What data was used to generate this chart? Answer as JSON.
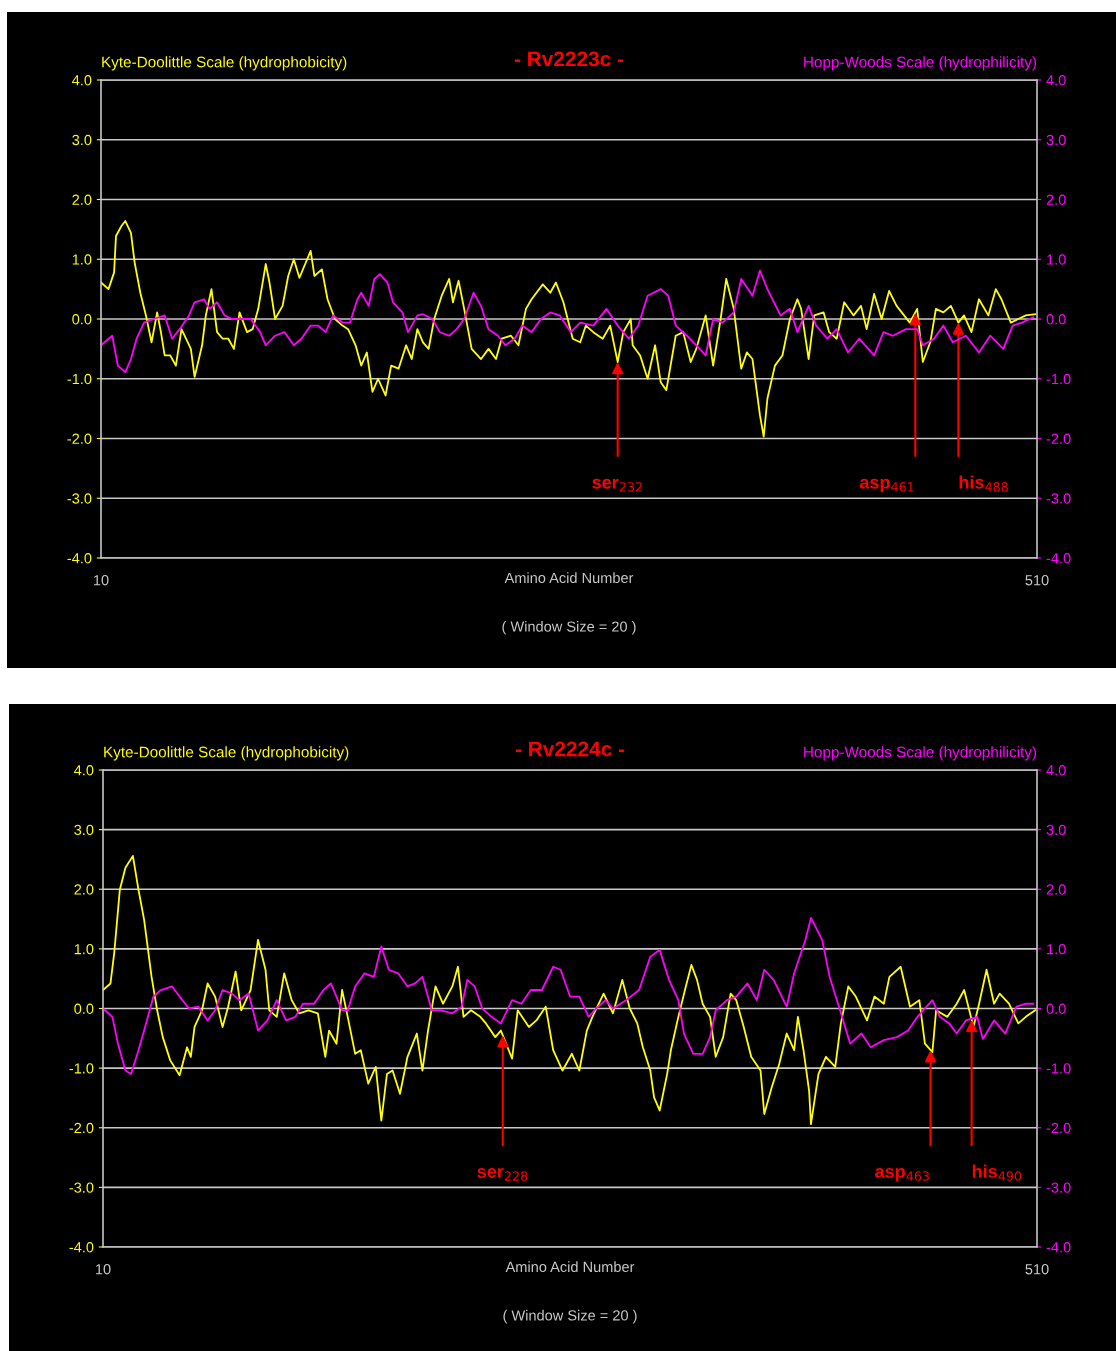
{
  "chart_data": [
    {
      "type": "line",
      "title": "- Rv2223c -",
      "xlabel": "Amino Acid Number",
      "xlim": [
        10,
        510
      ],
      "xticks": [
        10,
        510
      ],
      "ylim": [
        -4,
        4
      ],
      "yticks": [
        {
          "value": -4,
          "label": "-4.0"
        },
        {
          "value": -3,
          "label": "-3.0"
        },
        {
          "value": -2,
          "label": "-2.0"
        },
        {
          "value": -1,
          "label": "-1.0"
        },
        {
          "value": 0,
          "label": "0.0"
        },
        {
          "value": 1,
          "label": "1.0"
        },
        {
          "value": 2,
          "label": "2.0"
        },
        {
          "value": 3,
          "label": "3.0"
        },
        {
          "value": 4,
          "label": "4.0"
        }
      ],
      "y2lim": [
        -4,
        4
      ],
      "y2ticks": [
        {
          "value": -4,
          "label": "-4.0"
        },
        {
          "value": -3,
          "label": "-3.0"
        },
        {
          "value": -2,
          "label": "-2.0"
        },
        {
          "value": -1,
          "label": "-1.0"
        },
        {
          "value": 0,
          "label": "0.0"
        },
        {
          "value": 1,
          "label": "1.0"
        },
        {
          "value": 2,
          "label": "2.0"
        },
        {
          "value": 3,
          "label": "3.0"
        },
        {
          "value": 4,
          "label": "4.0"
        }
      ],
      "grid": "y",
      "annotations": [
        {
          "text": "ser$_{232}$",
          "x": 286,
          "y": -0.72
        },
        {
          "text": "asp$_{461}$",
          "x": 445,
          "y": 0.1
        },
        {
          "text": "his$_{488}$",
          "x": 468,
          "y": -0.06
        },
        "( Window Size = 20 )"
      ],
      "series": [
        {
          "name": "Kyte-Doolittle Scale (hydrophobicity)",
          "color": "#ffff00",
          "x": [
            10,
            14,
            17,
            18,
            21,
            23,
            26,
            28,
            31,
            34,
            37,
            40,
            42,
            44,
            47,
            50,
            53,
            58,
            60,
            64,
            66,
            69,
            72,
            75,
            78,
            81,
            84,
            88,
            91,
            94,
            98,
            100,
            103,
            107,
            110,
            113,
            116,
            122,
            124,
            128,
            131,
            135,
            139,
            142,
            146,
            149,
            152,
            155,
            158,
            162,
            165,
            169,
            173,
            176,
            179,
            182,
            185,
            188,
            192,
            196,
            198,
            201,
            204,
            208,
            213,
            217,
            221,
            224,
            229,
            233,
            237,
            240,
            246,
            250,
            253,
            257,
            262,
            266,
            269,
            273,
            278,
            282,
            286,
            289,
            293,
            294,
            298,
            302,
            306,
            309,
            312,
            317,
            321,
            325,
            328,
            333,
            337,
            341,
            344,
            348,
            352,
            355,
            358,
            362,
            364,
            366,
            370,
            374,
            378,
            382,
            384,
            388,
            391,
            396,
            399,
            403,
            407,
            412,
            416,
            419,
            423,
            427,
            431,
            435,
            439,
            442,
            446,
            449,
            453,
            456,
            460,
            464,
            468,
            471,
            475,
            479,
            484,
            488,
            491,
            496,
            500,
            504,
            509
          ],
          "values": [
            0.61,
            0.5,
            0.78,
            1.39,
            1.56,
            1.64,
            1.44,
            0.94,
            0.44,
            0.06,
            -0.39,
            0.11,
            -0.22,
            -0.61,
            -0.61,
            -0.78,
            -0.17,
            -0.5,
            -0.97,
            -0.44,
            0.06,
            0.5,
            -0.22,
            -0.33,
            -0.33,
            -0.5,
            0.11,
            -0.22,
            -0.17,
            0.17,
            0.92,
            0.61,
            0,
            0.22,
            0.72,
            1.0,
            0.69,
            1.14,
            0.72,
            0.83,
            0.33,
            0,
            -0.11,
            -0.17,
            -0.44,
            -0.78,
            -0.56,
            -1.22,
            -1.0,
            -1.28,
            -0.78,
            -0.83,
            -0.44,
            -0.67,
            -0.17,
            -0.39,
            -0.5,
            0,
            0.39,
            0.67,
            0.28,
            0.64,
            0.17,
            -0.5,
            -0.67,
            -0.5,
            -0.67,
            -0.33,
            -0.28,
            -0.44,
            0.17,
            0.33,
            0.58,
            0.44,
            0.61,
            0.28,
            -0.33,
            -0.39,
            -0.11,
            -0.22,
            -0.33,
            -0.11,
            -0.72,
            -0.22,
            0,
            -0.44,
            -0.61,
            -1.0,
            -0.44,
            -1.06,
            -1.19,
            -0.28,
            -0.22,
            -0.72,
            -0.5,
            0.06,
            -0.78,
            0,
            0.67,
            0.17,
            -0.83,
            -0.56,
            -0.67,
            -1.61,
            -1.97,
            -1.33,
            -0.78,
            -0.61,
            0,
            0.33,
            0.17,
            -0.67,
            0.06,
            0.11,
            -0.22,
            -0.33,
            0.28,
            0.06,
            0.22,
            -0.17,
            0.42,
            0,
            0.47,
            0.22,
            0.06,
            -0.06,
            0.17,
            -0.72,
            -0.39,
            0.17,
            0.11,
            0.22,
            -0.06,
            0.06,
            -0.22,
            0.33,
            0.06,
            0.5,
            0.33,
            -0.06,
            0,
            0.06,
            0.08
          ]
        },
        {
          "name": "Hopp-Woods Scale (hydrophilicity)",
          "color": "#ff00ff",
          "axis": "y2",
          "x": [
            10,
            16,
            19,
            23,
            26,
            29,
            33,
            38,
            44,
            48,
            52,
            57,
            60,
            65,
            68,
            72,
            76,
            80,
            85,
            90,
            95,
            98,
            103,
            108,
            113,
            117,
            122,
            126,
            130,
            134,
            139,
            143,
            147,
            149,
            153,
            156,
            159,
            163,
            166,
            171,
            174,
            179,
            182,
            187,
            191,
            196,
            200,
            204,
            209,
            213,
            217,
            222,
            226,
            231,
            235,
            240,
            245,
            250,
            255,
            261,
            266,
            273,
            280,
            286,
            292,
            297,
            302,
            309,
            313,
            317,
            323,
            328,
            333,
            337,
            342,
            348,
            352,
            358,
            362,
            366,
            373,
            378,
            382,
            388,
            392,
            398,
            403,
            409,
            415,
            423,
            428,
            433,
            440,
            446,
            449,
            455,
            460,
            465,
            472,
            479,
            485,
            492,
            497,
            502,
            508
          ],
          "values": [
            -0.44,
            -0.28,
            -0.78,
            -0.89,
            -0.67,
            -0.33,
            -0.06,
            0,
            0.06,
            -0.33,
            -0.17,
            0.06,
            0.28,
            0.33,
            0.17,
            0.28,
            0.06,
            0,
            0,
            0,
            -0.22,
            -0.44,
            -0.28,
            -0.22,
            -0.44,
            -0.33,
            -0.11,
            -0.11,
            -0.22,
            0.06,
            -0.06,
            -0.06,
            0.33,
            0.44,
            0.22,
            0.67,
            0.75,
            0.61,
            0.28,
            0.11,
            -0.22,
            0.06,
            0.08,
            0,
            -0.22,
            -0.28,
            -0.17,
            0,
            0.44,
            0.22,
            -0.17,
            -0.28,
            -0.44,
            -0.33,
            -0.11,
            -0.22,
            0,
            0.11,
            0.06,
            -0.22,
            -0.06,
            -0.11,
            0.17,
            -0.11,
            -0.33,
            -0.11,
            0.39,
            0.5,
            0.39,
            -0.11,
            -0.28,
            -0.44,
            -0.61,
            0,
            -0.06,
            0.11,
            0.67,
            0.39,
            0.81,
            0.5,
            0.06,
            0.17,
            -0.22,
            0.22,
            -0.11,
            -0.33,
            -0.17,
            -0.56,
            -0.33,
            -0.61,
            -0.22,
            -0.28,
            -0.17,
            -0.17,
            -0.44,
            -0.33,
            -0.11,
            -0.39,
            -0.28,
            -0.56,
            -0.28,
            -0.5,
            -0.11,
            -0.06,
            0.03
          ]
        }
      ]
    },
    {
      "type": "line",
      "title": "- Rv2224c -",
      "xlabel": "Amino Acid Number",
      "xlim": [
        10,
        510
      ],
      "xticks": [
        10,
        510
      ],
      "ylim": [
        -4,
        4
      ],
      "yticks": [
        {
          "value": -4,
          "label": "-4.0"
        },
        {
          "value": -3,
          "label": "-3.0"
        },
        {
          "value": -2,
          "label": "-2.0"
        },
        {
          "value": -1,
          "label": "-1.0"
        },
        {
          "value": 0,
          "label": "0.0"
        },
        {
          "value": 1,
          "label": "1.0"
        },
        {
          "value": 2,
          "label": "2.0"
        },
        {
          "value": 3,
          "label": "3.0"
        },
        {
          "value": 4,
          "label": "4.0"
        }
      ],
      "y2lim": [
        -4,
        4
      ],
      "y2ticks": [
        {
          "value": -4,
          "label": "-4.0"
        },
        {
          "value": -3,
          "label": "-3.0"
        },
        {
          "value": -2,
          "label": "-2.0"
        },
        {
          "value": -1,
          "label": "-1.0"
        },
        {
          "value": 0,
          "label": "0.0"
        },
        {
          "value": 1,
          "label": "1.0"
        },
        {
          "value": 2,
          "label": "2.0"
        },
        {
          "value": 3,
          "label": "3.0"
        },
        {
          "value": 4,
          "label": "4.0"
        }
      ],
      "grid": "y",
      "annotations": [
        {
          "text": "ser$_{228}$",
          "x": 224,
          "y": -0.45
        },
        {
          "text": "asp$_{463}$",
          "x": 453,
          "y": -0.7
        },
        {
          "text": "his$_{490}$",
          "x": 475,
          "y": -0.19
        },
        "( Window Size = 20 )"
      ],
      "series": [
        {
          "name": "Kyte-Doolittle Scale (hydrophobicity)",
          "color": "#ffff00",
          "x": [
            10,
            14,
            16,
            19,
            22,
            26,
            29,
            32,
            36,
            39,
            42,
            46,
            51,
            55,
            57,
            59,
            63,
            66,
            70,
            74,
            77,
            81,
            84,
            89,
            93,
            97,
            99,
            103,
            107,
            111,
            115,
            120,
            125,
            129,
            131,
            135,
            138,
            141,
            145,
            148,
            152,
            156,
            159,
            162,
            165,
            169,
            173,
            178,
            181,
            184,
            188,
            192,
            197,
            200,
            203,
            207,
            212,
            215,
            220,
            223,
            229,
            232,
            238,
            242,
            247,
            251,
            256,
            261,
            265,
            269,
            272,
            278,
            283,
            288,
            292,
            296,
            299,
            303,
            305,
            308,
            312,
            314,
            318,
            322,
            325,
            328,
            331,
            335,
            338,
            342,
            346,
            349,
            353,
            357,
            362,
            364,
            368,
            372,
            376,
            380,
            382,
            385,
            388,
            389,
            393,
            397,
            402,
            405,
            409,
            413,
            419,
            423,
            428,
            431,
            437,
            442,
            447,
            450,
            454,
            456,
            462,
            467,
            471,
            476,
            479,
            483,
            487,
            490,
            495,
            500,
            504,
            509
          ],
          "values": [
            0.31,
            0.42,
            0.93,
            1.99,
            2.36,
            2.56,
            1.99,
            1.49,
            0.53,
            -0.03,
            -0.48,
            -0.87,
            -1.12,
            -0.65,
            -0.81,
            -0.31,
            -0.03,
            0.42,
            0.2,
            -0.31,
            0.03,
            0.62,
            -0.03,
            0.31,
            1.15,
            0.65,
            -0.03,
            -0.14,
            0.59,
            0.14,
            -0.08,
            -0.03,
            -0.08,
            -0.81,
            -0.37,
            -0.59,
            0.31,
            -0.14,
            -0.76,
            -0.7,
            -1.26,
            -0.98,
            -1.88,
            -1.1,
            -1.04,
            -1.43,
            -0.81,
            -0.42,
            -1.04,
            -0.37,
            0.37,
            0.08,
            0.37,
            0.7,
            -0.14,
            -0.03,
            -0.14,
            -0.25,
            -0.48,
            -0.37,
            -0.84,
            -0.03,
            -0.31,
            -0.2,
            0.03,
            -0.7,
            -1.04,
            -0.76,
            -1.04,
            -0.37,
            -0.14,
            0.25,
            -0.08,
            0.48,
            0,
            -0.25,
            -0.65,
            -1.04,
            -1.49,
            -1.71,
            -1.1,
            -0.7,
            -0.14,
            0.37,
            0.73,
            0.48,
            0.08,
            -0.14,
            -0.81,
            -0.48,
            0.25,
            0.14,
            -0.31,
            -0.81,
            -1.04,
            -1.77,
            -1.32,
            -0.93,
            -0.42,
            -0.7,
            -0.14,
            -0.7,
            -1.38,
            -1.94,
            -1.1,
            -0.81,
            -0.98,
            -0.25,
            0.37,
            0.2,
            -0.2,
            0.2,
            0.08,
            0.53,
            0.7,
            0.03,
            0.14,
            -0.59,
            -0.73,
            -0.03,
            -0.14,
            0.08,
            0.31,
            -0.31,
            0.08,
            0.65,
            0.08,
            0.25,
            0.08,
            -0.25,
            -0.14,
            -0.03
          ]
        },
        {
          "name": "Hopp-Woods Scale (hydrophilicity)",
          "color": "#ff00ff",
          "axis": "y2",
          "x": [
            10,
            15,
            18,
            22,
            25,
            29,
            32,
            37,
            41,
            47,
            51,
            56,
            61,
            66,
            70,
            74,
            79,
            83,
            88,
            93,
            98,
            103,
            108,
            113,
            117,
            123,
            128,
            132,
            138,
            141,
            145,
            150,
            155,
            159,
            163,
            168,
            173,
            177,
            181,
            186,
            191,
            197,
            202,
            205,
            209,
            213,
            218,
            223,
            229,
            234,
            239,
            245,
            251,
            255,
            260,
            265,
            270,
            274,
            279,
            283,
            290,
            297,
            303,
            308,
            313,
            318,
            321,
            326,
            331,
            335,
            338,
            344,
            349,
            355,
            360,
            364,
            369,
            376,
            380,
            386,
            389,
            395,
            399,
            404,
            410,
            416,
            421,
            428,
            435,
            441,
            446,
            454,
            458,
            463,
            467,
            472,
            478,
            481,
            487,
            493,
            499,
            504,
            508
          ],
          "values": [
            0,
            -0.14,
            -0.59,
            -1.04,
            -1.1,
            -0.7,
            -0.37,
            0.2,
            0.31,
            0.37,
            0.2,
            0,
            0.03,
            -0.2,
            -0.03,
            0.31,
            0.25,
            0.14,
            0.25,
            -0.37,
            -0.2,
            0.14,
            -0.2,
            -0.14,
            0.08,
            0.08,
            0.31,
            0.42,
            -0.03,
            -0.03,
            0.37,
            0.59,
            0.53,
            1.04,
            0.65,
            0.59,
            0.37,
            0.42,
            0.53,
            -0.03,
            -0.03,
            -0.08,
            0.03,
            0.48,
            0.37,
            0,
            -0.14,
            -0.25,
            0.14,
            0.08,
            0.31,
            0.31,
            0.7,
            0.65,
            0.2,
            0.2,
            -0.14,
            0,
            0.14,
            0,
            0.14,
            0.31,
            0.87,
            0.98,
            0.48,
            0.14,
            -0.42,
            -0.76,
            -0.76,
            -0.48,
            -0.03,
            0.14,
            0.2,
            0.42,
            0.14,
            0.65,
            0.48,
            0.03,
            0.59,
            1.15,
            1.52,
            1.15,
            0.53,
            0.03,
            -0.59,
            -0.42,
            -0.65,
            -0.53,
            -0.48,
            -0.37,
            -0.14,
            0.14,
            -0.14,
            -0.25,
            -0.42,
            -0.2,
            -0.14,
            -0.51,
            -0.2,
            -0.42,
            0.03,
            0.08,
            0.08
          ]
        }
      ]
    }
  ]
}
